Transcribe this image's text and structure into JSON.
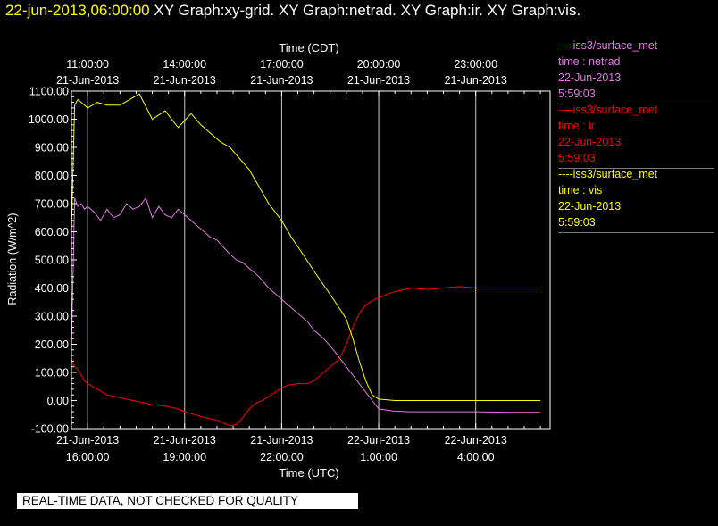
{
  "header": {
    "timestamp": "22-jun-2013,06:00:00",
    "graphs": "XY Graph:xy-grid.  XY Graph:netrad.  XY Graph:ir.  XY Graph:vis."
  },
  "legend": [
    {
      "line": "----iss3/surface_met",
      "var": "time : netrad",
      "date": "22-Jun-2013",
      "time": "5:59:03",
      "color": "#e07be0"
    },
    {
      "line": "----iss3/surface_met",
      "var": "time : ir",
      "date": "22-Jun-2013",
      "time": "5:59:03",
      "color": "#ff0000"
    },
    {
      "line": "----iss3/surface_met",
      "var": "time : vis",
      "date": "22-Jun-2013",
      "time": "5:59:03",
      "color": "#ffff00"
    }
  ],
  "notice": "REAL-TIME DATA, NOT CHECKED FOR QUALITY",
  "chart_data": {
    "type": "line",
    "title": "",
    "xlabel_top": "Time (CDT)",
    "xlabel": "Time (UTC)",
    "ylabel": "Radiation (W/m^2)",
    "xlim": [
      15.5,
      30.3
    ],
    "ylim": [
      -100,
      1100
    ],
    "grid": true,
    "yticks": [
      -100,
      0,
      100,
      200,
      300,
      400,
      500,
      600,
      700,
      800,
      900,
      1000,
      1100
    ],
    "yticklabels": [
      "-100.00",
      "0.00",
      "100.00",
      "200.00",
      "300.00",
      "400.00",
      "500.00",
      "600.00",
      "700.00",
      "800.00",
      "900.00",
      "1000.00",
      "1100.00"
    ],
    "xticks_bottom": [
      {
        "x": 16,
        "date": "21-Jun-2013",
        "time": "16:00:00"
      },
      {
        "x": 19,
        "date": "21-Jun-2013",
        "time": "19:00:00"
      },
      {
        "x": 22,
        "date": "21-Jun-2013",
        "time": "22:00:00"
      },
      {
        "x": 25,
        "date": "22-Jun-2013",
        "time": "1:00:00"
      },
      {
        "x": 28,
        "date": "22-Jun-2013",
        "time": "4:00:00"
      }
    ],
    "xticks_top": [
      {
        "x": 16,
        "time": "11:00:00",
        "date": "21-Jun-2013"
      },
      {
        "x": 19,
        "time": "14:00:00",
        "date": "21-Jun-2013"
      },
      {
        "x": 22,
        "time": "17:00:00",
        "date": "21-Jun-2013"
      },
      {
        "x": 25,
        "time": "20:00:00",
        "date": "21-Jun-2013"
      },
      {
        "x": 28,
        "time": "23:00:00",
        "date": "21-Jun-2013"
      }
    ],
    "series": [
      {
        "name": "netrad",
        "color": "#e07be0",
        "x": [
          15.5,
          15.6,
          15.7,
          15.8,
          15.9,
          16.0,
          16.2,
          16.4,
          16.6,
          16.8,
          17.0,
          17.2,
          17.4,
          17.6,
          17.8,
          18.0,
          18.2,
          18.4,
          18.6,
          18.8,
          19.0,
          19.2,
          19.4,
          19.6,
          19.8,
          20.0,
          20.2,
          20.4,
          20.6,
          20.8,
          21.0,
          21.3,
          21.6,
          22.0,
          22.4,
          22.8,
          23.0,
          23.3,
          23.6,
          24.0,
          24.2,
          24.4,
          24.6,
          24.8,
          25.0,
          25.5,
          26.0,
          27.0,
          28.0,
          29.0,
          30.0
        ],
        "y": [
          180,
          720,
          690,
          700,
          680,
          690,
          670,
          640,
          680,
          650,
          660,
          700,
          680,
          690,
          720,
          650,
          690,
          660,
          650,
          680,
          660,
          640,
          620,
          600,
          580,
          570,
          545,
          520,
          500,
          490,
          470,
          440,
          400,
          360,
          320,
          280,
          250,
          220,
          180,
          120,
          90,
          60,
          30,
          0,
          -30,
          -38,
          -40,
          -40,
          -40,
          -42,
          -42
        ]
      },
      {
        "name": "ir",
        "color": "#ff0000",
        "x": [
          15.5,
          15.55,
          15.6,
          15.7,
          15.8,
          15.9,
          16.0,
          16.3,
          16.6,
          17.0,
          17.4,
          17.8,
          18.0,
          18.4,
          18.8,
          19.0,
          19.3,
          19.6,
          20.0,
          20.2,
          20.4,
          20.6,
          20.8,
          21.0,
          21.2,
          21.4,
          21.6,
          21.8,
          22.0,
          22.2,
          22.5,
          22.8,
          23.0,
          23.2,
          23.5,
          23.8,
          24.0,
          24.2,
          24.4,
          24.6,
          24.8,
          25.0,
          25.3,
          25.6,
          26.0,
          26.5,
          27.0,
          27.5,
          28.0,
          28.5,
          29.0,
          29.5,
          30.0
        ],
        "y": [
          150,
          130,
          120,
          110,
          90,
          70,
          60,
          40,
          20,
          10,
          0,
          -10,
          -15,
          -20,
          -30,
          -40,
          -50,
          -60,
          -70,
          -80,
          -90,
          -85,
          -60,
          -30,
          -10,
          0,
          15,
          30,
          45,
          55,
          60,
          60,
          70,
          90,
          120,
          150,
          200,
          260,
          310,
          340,
          355,
          365,
          380,
          390,
          400,
          395,
          400,
          405,
          400,
          400,
          400,
          400,
          400
        ]
      },
      {
        "name": "vis",
        "color": "#ffff00",
        "x": [
          15.5,
          15.6,
          15.7,
          15.8,
          15.9,
          16.0,
          16.3,
          16.6,
          17.0,
          17.3,
          17.6,
          18.0,
          18.4,
          18.8,
          19.2,
          19.5,
          19.8,
          20.1,
          20.4,
          20.7,
          21.0,
          21.3,
          21.6,
          22.0,
          22.3,
          22.6,
          23.0,
          23.3,
          23.6,
          24.0,
          24.2,
          24.4,
          24.6,
          24.8,
          25.0,
          25.5,
          26.0,
          26.5,
          27.0,
          27.5,
          28.0,
          28.5,
          29.0,
          29.5,
          30.0
        ],
        "y": [
          600,
          1050,
          1070,
          1060,
          1050,
          1040,
          1060,
          1050,
          1050,
          1070,
          1090,
          1000,
          1030,
          970,
          1020,
          980,
          950,
          920,
          900,
          860,
          820,
          760,
          700,
          640,
          580,
          530,
          460,
          410,
          360,
          290,
          220,
          140,
          70,
          20,
          5,
          0,
          0,
          0,
          0,
          0,
          0,
          0,
          0,
          0,
          0
        ]
      }
    ]
  }
}
